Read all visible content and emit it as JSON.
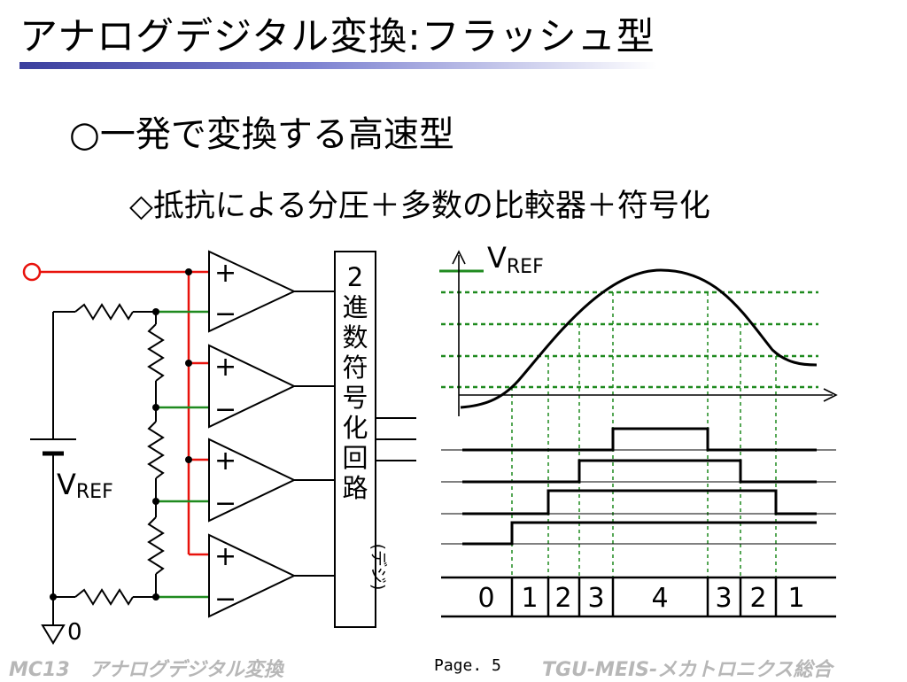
{
  "slide": {
    "title": "アナログデジタル変換:フラッシュ型",
    "bullet_1": "○一発で変換する高速型",
    "bullet_2": "◇抵抗による分圧＋多数の比較器＋符号化"
  },
  "circuit": {
    "vref_label_main": "V",
    "vref_label_sub": "REF",
    "ground_label": "0",
    "comparator_plus": "+",
    "comparator_minus": "−",
    "encoder_chars": [
      "2",
      "進",
      "数",
      "符",
      "号",
      "化",
      "回",
      "路"
    ],
    "encoder_note": "(デジ)"
  },
  "waveform": {
    "vref_label_main": "V",
    "vref_label_sub": "REF",
    "codes": [
      "0",
      "1",
      "2",
      "3",
      "4",
      "3",
      "2",
      "1"
    ]
  },
  "footer": {
    "left": "MC13　アナログデジタル変換",
    "page": "Page. 5",
    "right": "TGU-MEIS-メカトロニクス総合"
  },
  "colors": {
    "input_wire": "#e8120c",
    "tap_wire": "#1f8a1f",
    "threshold": "#1f8a1f",
    "footer_text": "#b7b7b7",
    "underline": "#3b3f9e"
  }
}
